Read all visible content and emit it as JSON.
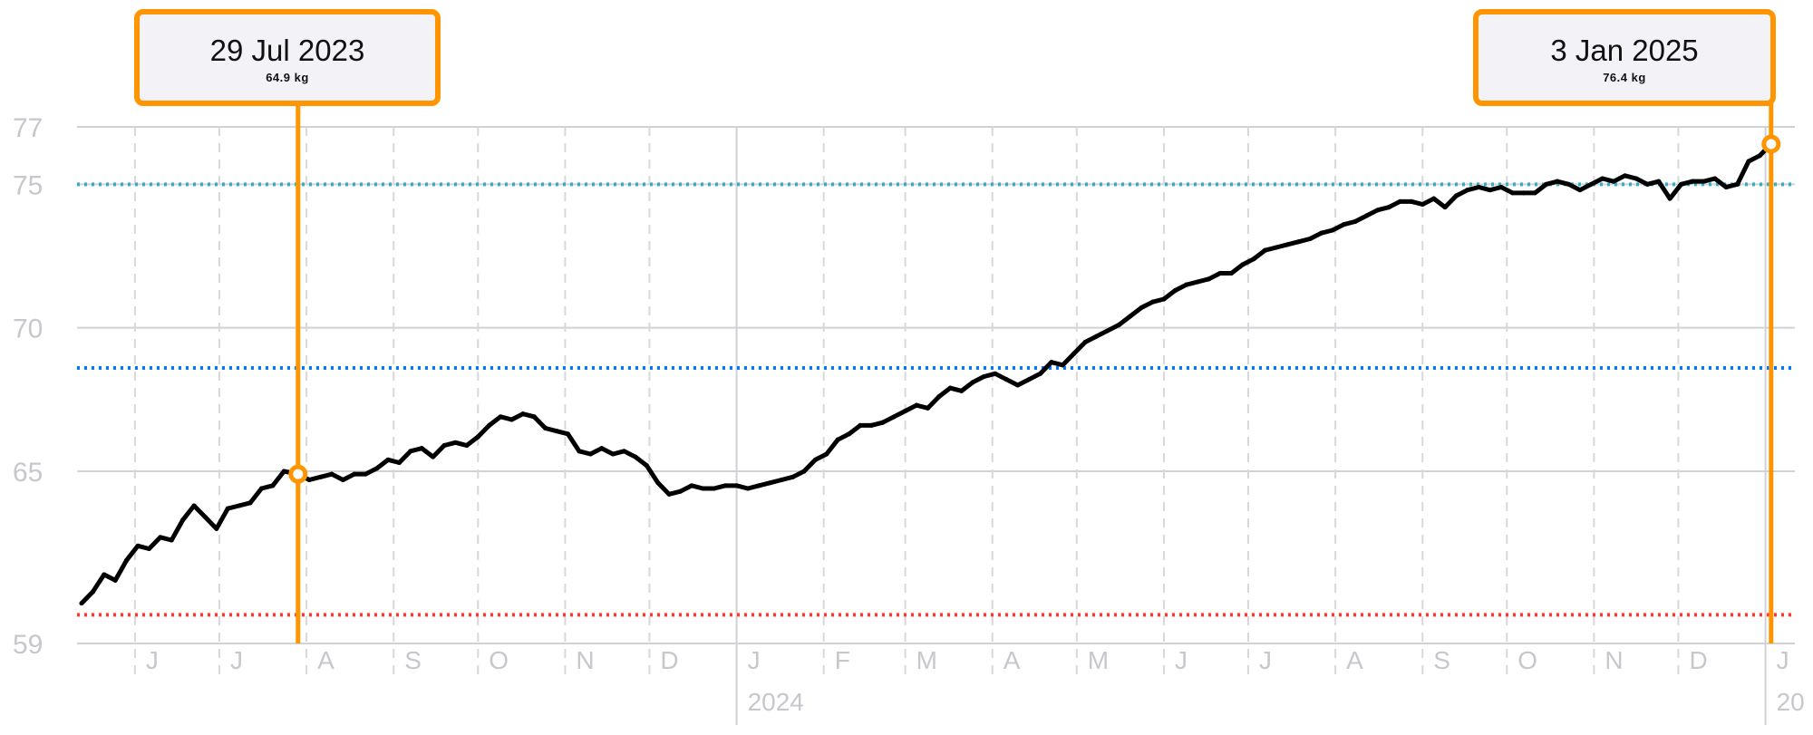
{
  "chart_data": {
    "type": "line",
    "title": "",
    "xlabel": "",
    "ylabel": "",
    "ylim": [
      59,
      77
    ],
    "y_ticks": [
      59,
      65,
      70,
      75,
      77
    ],
    "x_range": [
      "2023-05-13",
      "2025-01-05"
    ],
    "month_ticks": [
      {
        "date": "2023-06-01",
        "label": "J"
      },
      {
        "date": "2023-07-01",
        "label": "J"
      },
      {
        "date": "2023-08-01",
        "label": "A"
      },
      {
        "date": "2023-09-01",
        "label": "S"
      },
      {
        "date": "2023-10-01",
        "label": "O"
      },
      {
        "date": "2023-11-01",
        "label": "N"
      },
      {
        "date": "2023-12-01",
        "label": "D"
      },
      {
        "date": "2024-01-01",
        "label": "J"
      },
      {
        "date": "2024-02-01",
        "label": "F"
      },
      {
        "date": "2024-03-01",
        "label": "M"
      },
      {
        "date": "2024-04-01",
        "label": "A"
      },
      {
        "date": "2024-05-01",
        "label": "M"
      },
      {
        "date": "2024-06-01",
        "label": "J"
      },
      {
        "date": "2024-07-01",
        "label": "J"
      },
      {
        "date": "2024-08-01",
        "label": "A"
      },
      {
        "date": "2024-09-01",
        "label": "S"
      },
      {
        "date": "2024-10-01",
        "label": "O"
      },
      {
        "date": "2024-11-01",
        "label": "N"
      },
      {
        "date": "2024-12-01",
        "label": "D"
      },
      {
        "date": "2025-01-01",
        "label": "J"
      }
    ],
    "year_labels": [
      {
        "date": "2024-01-01",
        "label": "2024"
      },
      {
        "date": "2025-01-01",
        "label": "20"
      }
    ],
    "reference_lines": [
      {
        "value": 75.0,
        "color": "#30b0c7"
      },
      {
        "value": 68.6,
        "color": "#007aff"
      },
      {
        "value": 60.0,
        "color": "#ff3b30"
      }
    ],
    "line_color": "#000000",
    "highlight_color": "#ff9500",
    "series": [
      {
        "points": [
          [
            "2023-05-13",
            60.4
          ],
          [
            "2023-05-17",
            60.8
          ],
          [
            "2023-05-21",
            61.4
          ],
          [
            "2023-05-25",
            61.2
          ],
          [
            "2023-05-29",
            61.9
          ],
          [
            "2023-06-02",
            62.4
          ],
          [
            "2023-06-06",
            62.3
          ],
          [
            "2023-06-10",
            62.7
          ],
          [
            "2023-06-14",
            62.6
          ],
          [
            "2023-06-18",
            63.3
          ],
          [
            "2023-06-22",
            63.8
          ],
          [
            "2023-06-26",
            63.4
          ],
          [
            "2023-06-30",
            63.0
          ],
          [
            "2023-07-04",
            63.7
          ],
          [
            "2023-07-08",
            63.8
          ],
          [
            "2023-07-12",
            63.9
          ],
          [
            "2023-07-16",
            64.4
          ],
          [
            "2023-07-20",
            64.5
          ],
          [
            "2023-07-24",
            65.0
          ],
          [
            "2023-07-29",
            64.9
          ],
          [
            "2023-08-02",
            64.7
          ],
          [
            "2023-08-06",
            64.8
          ],
          [
            "2023-08-10",
            64.9
          ],
          [
            "2023-08-14",
            64.7
          ],
          [
            "2023-08-18",
            64.9
          ],
          [
            "2023-08-22",
            64.9
          ],
          [
            "2023-08-26",
            65.1
          ],
          [
            "2023-08-30",
            65.4
          ],
          [
            "2023-09-03",
            65.3
          ],
          [
            "2023-09-07",
            65.7
          ],
          [
            "2023-09-11",
            65.8
          ],
          [
            "2023-09-15",
            65.5
          ],
          [
            "2023-09-19",
            65.9
          ],
          [
            "2023-09-23",
            66.0
          ],
          [
            "2023-09-27",
            65.9
          ],
          [
            "2023-10-01",
            66.2
          ],
          [
            "2023-10-05",
            66.6
          ],
          [
            "2023-10-09",
            66.9
          ],
          [
            "2023-10-13",
            66.8
          ],
          [
            "2023-10-17",
            67.0
          ],
          [
            "2023-10-21",
            66.9
          ],
          [
            "2023-10-25",
            66.5
          ],
          [
            "2023-10-29",
            66.4
          ],
          [
            "2023-11-02",
            66.3
          ],
          [
            "2023-11-06",
            65.7
          ],
          [
            "2023-11-10",
            65.6
          ],
          [
            "2023-11-14",
            65.8
          ],
          [
            "2023-11-18",
            65.6
          ],
          [
            "2023-11-22",
            65.7
          ],
          [
            "2023-11-26",
            65.5
          ],
          [
            "2023-11-30",
            65.2
          ],
          [
            "2023-12-04",
            64.6
          ],
          [
            "2023-12-08",
            64.2
          ],
          [
            "2023-12-12",
            64.3
          ],
          [
            "2023-12-16",
            64.5
          ],
          [
            "2023-12-20",
            64.4
          ],
          [
            "2023-12-24",
            64.4
          ],
          [
            "2023-12-28",
            64.5
          ],
          [
            "2024-01-01",
            64.5
          ],
          [
            "2024-01-05",
            64.4
          ],
          [
            "2024-01-09",
            64.5
          ],
          [
            "2024-01-13",
            64.6
          ],
          [
            "2024-01-17",
            64.7
          ],
          [
            "2024-01-21",
            64.8
          ],
          [
            "2024-01-25",
            65.0
          ],
          [
            "2024-01-29",
            65.4
          ],
          [
            "2024-02-02",
            65.6
          ],
          [
            "2024-02-06",
            66.1
          ],
          [
            "2024-02-10",
            66.3
          ],
          [
            "2024-02-14",
            66.6
          ],
          [
            "2024-02-18",
            66.6
          ],
          [
            "2024-02-22",
            66.7
          ],
          [
            "2024-02-26",
            66.9
          ],
          [
            "2024-03-01",
            67.1
          ],
          [
            "2024-03-05",
            67.3
          ],
          [
            "2024-03-09",
            67.2
          ],
          [
            "2024-03-13",
            67.6
          ],
          [
            "2024-03-17",
            67.9
          ],
          [
            "2024-03-21",
            67.8
          ],
          [
            "2024-03-25",
            68.1
          ],
          [
            "2024-03-29",
            68.3
          ],
          [
            "2024-04-02",
            68.4
          ],
          [
            "2024-04-06",
            68.2
          ],
          [
            "2024-04-10",
            68.0
          ],
          [
            "2024-04-14",
            68.2
          ],
          [
            "2024-04-18",
            68.4
          ],
          [
            "2024-04-22",
            68.8
          ],
          [
            "2024-04-26",
            68.7
          ],
          [
            "2024-04-30",
            69.1
          ],
          [
            "2024-05-04",
            69.5
          ],
          [
            "2024-05-08",
            69.7
          ],
          [
            "2024-05-12",
            69.9
          ],
          [
            "2024-05-16",
            70.1
          ],
          [
            "2024-05-20",
            70.4
          ],
          [
            "2024-05-24",
            70.7
          ],
          [
            "2024-05-28",
            70.9
          ],
          [
            "2024-06-01",
            71.0
          ],
          [
            "2024-06-05",
            71.3
          ],
          [
            "2024-06-09",
            71.5
          ],
          [
            "2024-06-13",
            71.6
          ],
          [
            "2024-06-17",
            71.7
          ],
          [
            "2024-06-21",
            71.9
          ],
          [
            "2024-06-25",
            71.9
          ],
          [
            "2024-06-29",
            72.2
          ],
          [
            "2024-07-03",
            72.4
          ],
          [
            "2024-07-07",
            72.7
          ],
          [
            "2024-07-11",
            72.8
          ],
          [
            "2024-07-15",
            72.9
          ],
          [
            "2024-07-19",
            73.0
          ],
          [
            "2024-07-23",
            73.1
          ],
          [
            "2024-07-27",
            73.3
          ],
          [
            "2024-07-31",
            73.4
          ],
          [
            "2024-08-04",
            73.6
          ],
          [
            "2024-08-08",
            73.7
          ],
          [
            "2024-08-12",
            73.9
          ],
          [
            "2024-08-16",
            74.1
          ],
          [
            "2024-08-20",
            74.2
          ],
          [
            "2024-08-24",
            74.4
          ],
          [
            "2024-08-28",
            74.4
          ],
          [
            "2024-09-01",
            74.3
          ],
          [
            "2024-09-05",
            74.5
          ],
          [
            "2024-09-09",
            74.2
          ],
          [
            "2024-09-13",
            74.6
          ],
          [
            "2024-09-17",
            74.8
          ],
          [
            "2024-09-21",
            74.9
          ],
          [
            "2024-09-25",
            74.8
          ],
          [
            "2024-09-29",
            74.9
          ],
          [
            "2024-10-03",
            74.7
          ],
          [
            "2024-10-07",
            74.7
          ],
          [
            "2024-10-11",
            74.7
          ],
          [
            "2024-10-15",
            75.0
          ],
          [
            "2024-10-19",
            75.1
          ],
          [
            "2024-10-23",
            75.0
          ],
          [
            "2024-10-27",
            74.8
          ],
          [
            "2024-10-31",
            75.0
          ],
          [
            "2024-11-04",
            75.2
          ],
          [
            "2024-11-08",
            75.1
          ],
          [
            "2024-11-12",
            75.3
          ],
          [
            "2024-11-16",
            75.2
          ],
          [
            "2024-11-20",
            75.0
          ],
          [
            "2024-11-24",
            75.1
          ],
          [
            "2024-11-28",
            74.5
          ],
          [
            "2024-12-02",
            75.0
          ],
          [
            "2024-12-06",
            75.1
          ],
          [
            "2024-12-10",
            75.1
          ],
          [
            "2024-12-14",
            75.2
          ],
          [
            "2024-12-18",
            74.9
          ],
          [
            "2024-12-22",
            75.0
          ],
          [
            "2024-12-26",
            75.8
          ],
          [
            "2024-12-30",
            76.0
          ],
          [
            "2025-01-03",
            76.4
          ]
        ]
      }
    ],
    "highlights": [
      {
        "date": "2023-07-29",
        "value": 64.9,
        "date_label": "29 Jul 2023",
        "value_label": "64.9 kg"
      },
      {
        "date": "2025-01-03",
        "value": 76.4,
        "date_label": "3 Jan 2025",
        "value_label": "76.4 kg"
      }
    ]
  }
}
